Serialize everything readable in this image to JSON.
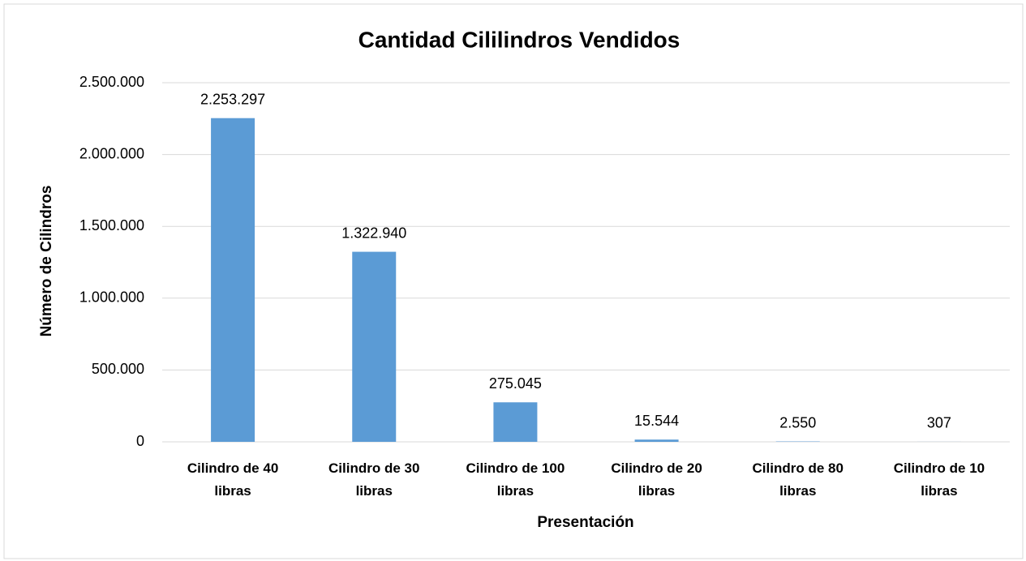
{
  "chart_data": {
    "type": "bar",
    "title": "Cantidad Cililindros Vendidos",
    "x_label": "Presentación",
    "y_label": "Número de Cilindros",
    "categories": [
      "Cilindro de 40 libras",
      "Cilindro de 30 libras",
      "Cilindro de 100 libras",
      "Cilindro de 20 libras",
      "Cilindro de 80 libras",
      "Cilindro de 10 libras"
    ],
    "values": [
      2253297,
      1322940,
      275045,
      15544,
      2550,
      307
    ],
    "value_labels": [
      "2.253.297",
      "1.322.940",
      "275.045",
      "15.544",
      "2.550",
      "307"
    ],
    "color": "#5b9bd5",
    "ylim": [
      0,
      2500000
    ],
    "yticks": [
      0,
      {
        "value": 500000,
        "label": "500.000"
      },
      {
        "value": 1000000,
        "label": "1.000.000"
      },
      {
        "value": 1500000,
        "label": "1.500.000"
      },
      {
        "value": 2000000,
        "label": "2.000.000"
      },
      {
        "value": 2500000,
        "label": "2.500.000"
      }
    ],
    "grid": true
  }
}
